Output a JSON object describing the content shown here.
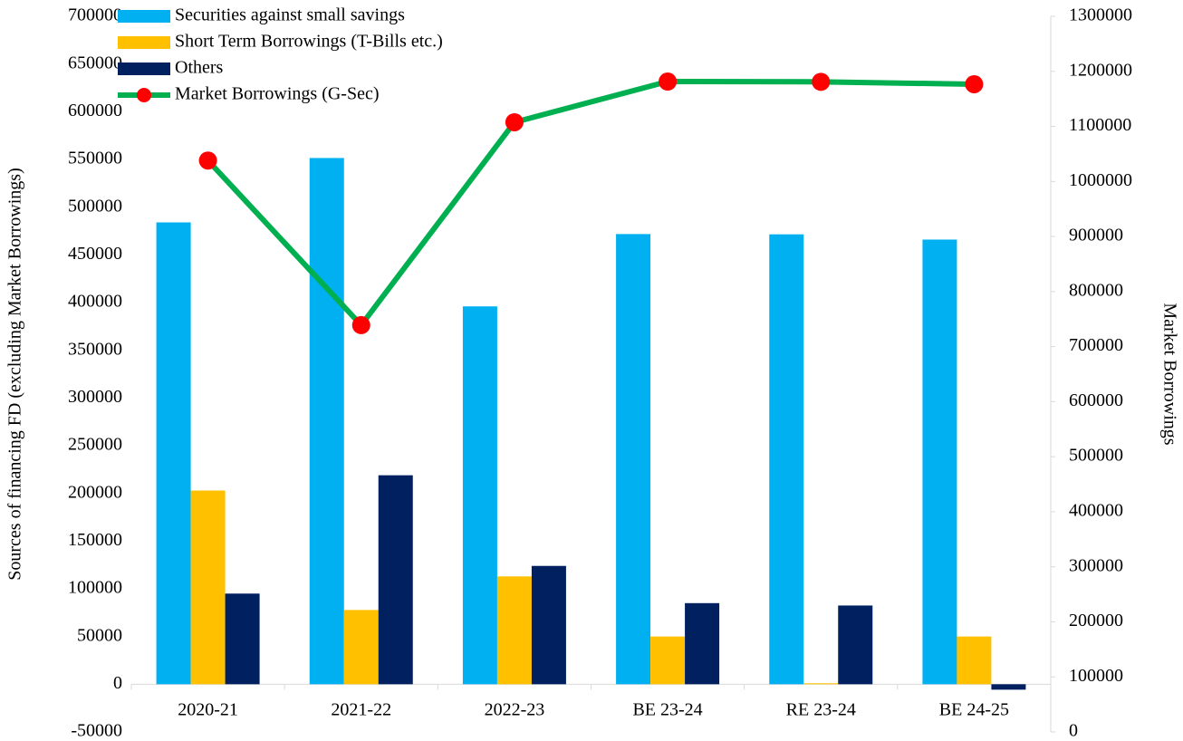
{
  "chart_data": {
    "type": "bar",
    "categories": [
      "2020-21",
      "2021-22",
      "2022-23",
      "BE 23-24",
      "RE 23-24",
      "BE 24-25"
    ],
    "series": [
      {
        "name": "Securities against small savings",
        "color": "#00b0f0",
        "values": [
          484000,
          551500,
          396000,
          471800,
          471500,
          466000
        ]
      },
      {
        "name": "Short Term Borrowings (T-Bills etc.)",
        "color": "#ffc000",
        "values": [
          203000,
          77800,
          113000,
          50000,
          1000,
          50000
        ]
      },
      {
        "name": "Others",
        "color": "#002060",
        "values": [
          95000,
          219000,
          124000,
          85000,
          82500,
          -5700
        ]
      },
      {
        "name": "Market Borrowings (G-Sec)",
        "type": "line",
        "axis": "y2",
        "color": "#00b050",
        "marker_color": "#ff0000",
        "values": [
          1038000,
          739000,
          1107500,
          1181500,
          1181000,
          1176600
        ]
      }
    ],
    "y_label": "Sources of  financing FD (excluding Market Borrowings)",
    "y2_label": "Market Borrowings",
    "ylim": [
      -50000,
      700000
    ],
    "yticks": [
      -50000,
      0,
      50000,
      100000,
      150000,
      200000,
      250000,
      300000,
      350000,
      400000,
      450000,
      500000,
      550000,
      600000,
      650000,
      700000
    ],
    "y2lim": [
      0,
      1300000
    ],
    "y2ticks": [
      0,
      100000,
      200000,
      300000,
      400000,
      500000,
      600000,
      700000,
      800000,
      900000,
      1000000,
      1100000,
      1200000,
      1300000
    ],
    "legend": "upper left",
    "grid": false
  }
}
